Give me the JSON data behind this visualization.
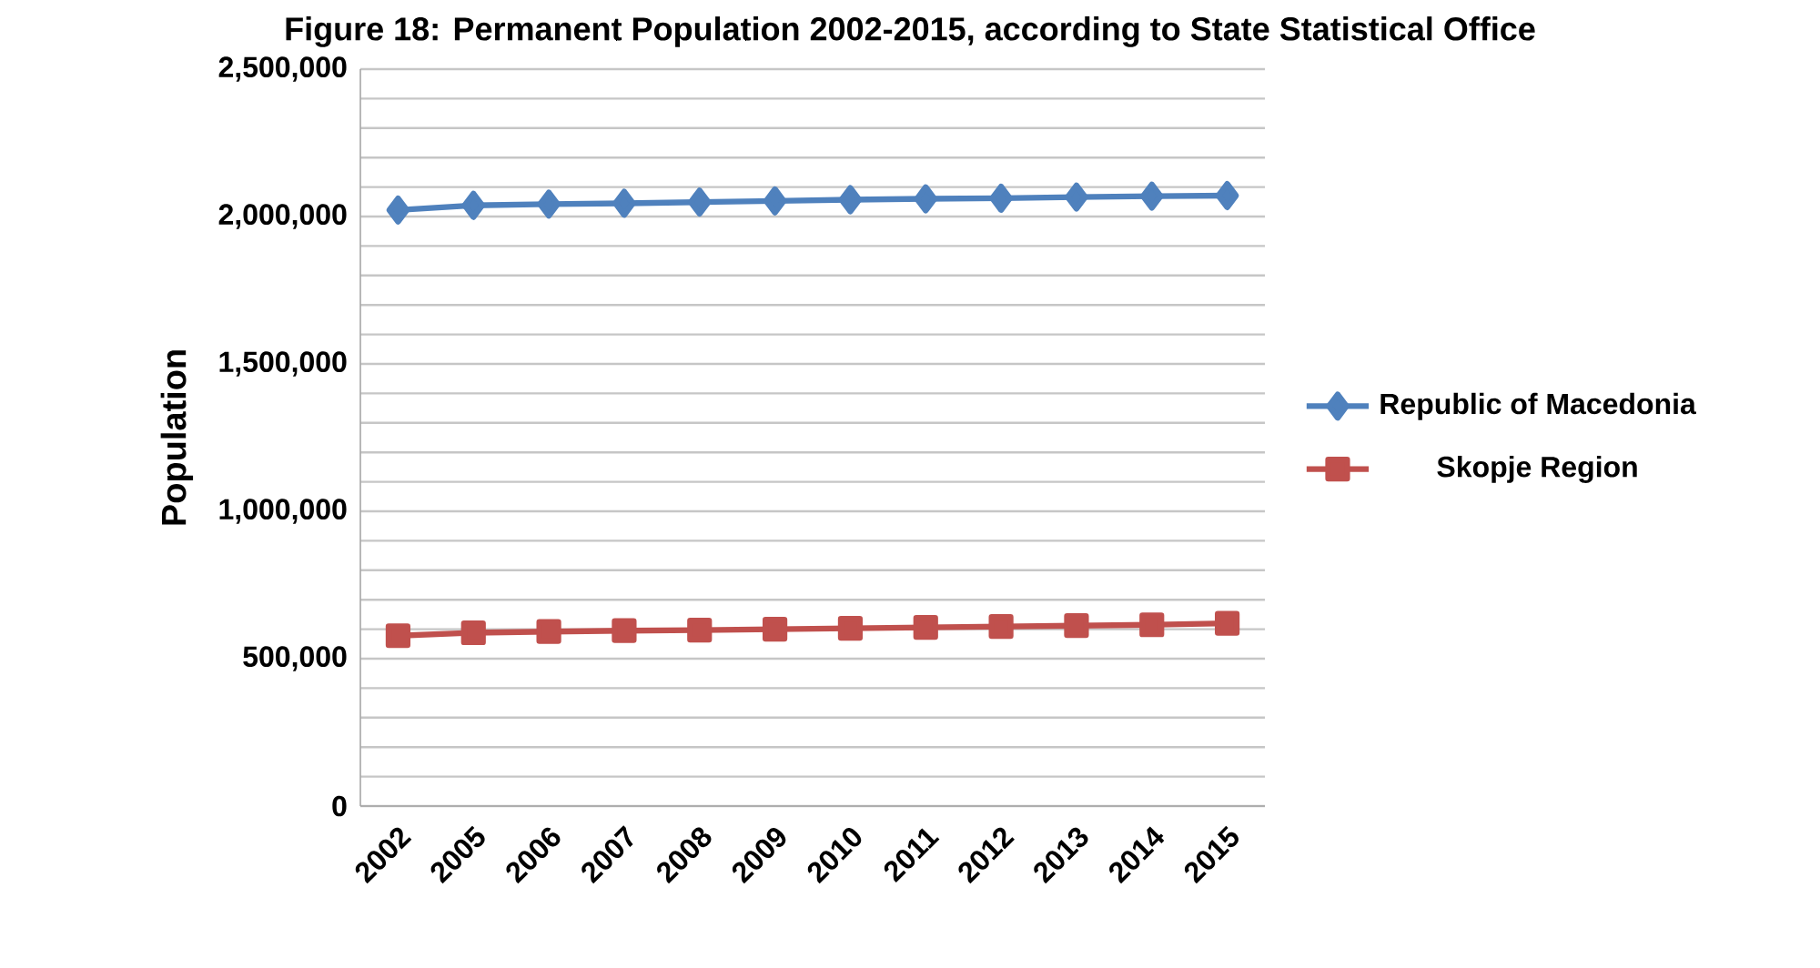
{
  "chart_data": {
    "type": "line",
    "title": "Figure 18: Permanent Population 2002-2015, according to State Statistical Office",
    "ylabel": "Population",
    "categories": [
      "2002",
      "2005",
      "2006",
      "2007",
      "2008",
      "2009",
      "2010",
      "2011",
      "2012",
      "2013",
      "2014",
      "2015"
    ],
    "series": [
      {
        "name": "Republic of Macedonia",
        "color": "#4f81bd",
        "marker": "diamond",
        "values": [
          2022000,
          2038000,
          2042000,
          2045000,
          2049000,
          2053000,
          2057000,
          2060000,
          2062000,
          2066000,
          2069000,
          2071000
        ]
      },
      {
        "name": "Skopje Region",
        "color": "#c0504d",
        "marker": "square",
        "values": [
          578000,
          588000,
          592000,
          595000,
          597000,
          600000,
          603000,
          606000,
          609000,
          612000,
          615000,
          620000
        ]
      }
    ],
    "ylim": [
      0,
      2500000
    ],
    "yticks": [
      {
        "value": 0,
        "label": "0"
      },
      {
        "value": 100000,
        "label": null
      },
      {
        "value": 200000,
        "label": null
      },
      {
        "value": 300000,
        "label": null
      },
      {
        "value": 400000,
        "label": null
      },
      {
        "value": 500000,
        "label": "500,000"
      },
      {
        "value": 600000,
        "label": null
      },
      {
        "value": 700000,
        "label": null
      },
      {
        "value": 800000,
        "label": null
      },
      {
        "value": 900000,
        "label": null
      },
      {
        "value": 1000000,
        "label": "1,000,000"
      },
      {
        "value": 1100000,
        "label": null
      },
      {
        "value": 1200000,
        "label": null
      },
      {
        "value": 1300000,
        "label": null
      },
      {
        "value": 1400000,
        "label": null
      },
      {
        "value": 1500000,
        "label": "1,500,000"
      },
      {
        "value": 1600000,
        "label": null
      },
      {
        "value": 1700000,
        "label": null
      },
      {
        "value": 1800000,
        "label": null
      },
      {
        "value": 1900000,
        "label": null
      },
      {
        "value": 2000000,
        "label": "2,000,000"
      },
      {
        "value": 2100000,
        "label": null
      },
      {
        "value": 2200000,
        "label": null
      },
      {
        "value": 2300000,
        "label": null
      },
      {
        "value": 2400000,
        "label": null
      },
      {
        "value": 2500000,
        "label": "2,500,000"
      }
    ],
    "grid": "y",
    "legend": "right",
    "line_style": "solid"
  }
}
